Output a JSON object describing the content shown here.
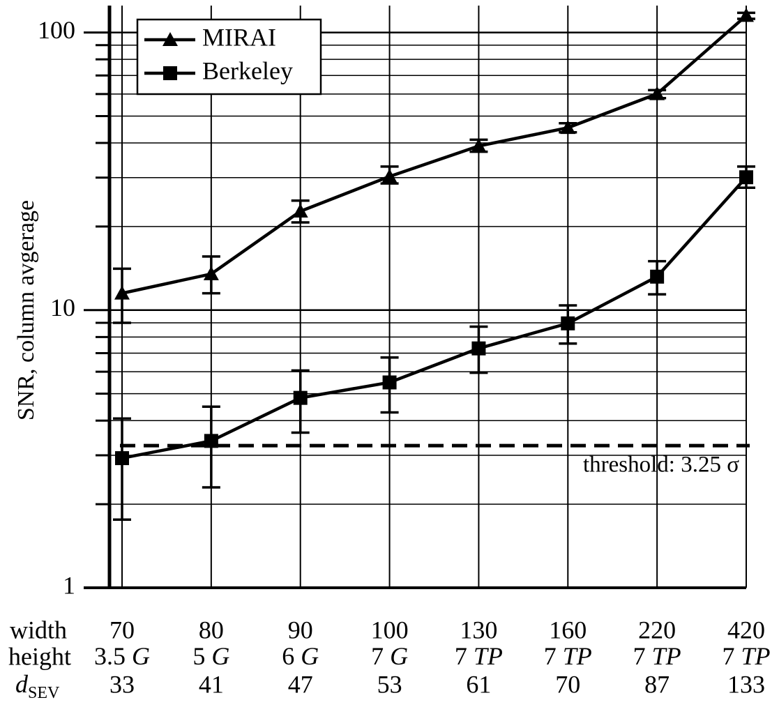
{
  "chart_data": {
    "type": "line",
    "ylabel": "SNR, column avgerage",
    "categories": [
      "70",
      "80",
      "90",
      "100",
      "130",
      "160",
      "220",
      "420"
    ],
    "x_rows": [
      {
        "label": "width"
      },
      {
        "label": "height",
        "values": [
          {
            "n": "3.5",
            "unit": "G"
          },
          {
            "n": "5",
            "unit": "G"
          },
          {
            "n": "6",
            "unit": "G"
          },
          {
            "n": "7",
            "unit": "G"
          },
          {
            "n": "7",
            "unit": "TP"
          },
          {
            "n": "7",
            "unit": "TP"
          },
          {
            "n": "7",
            "unit": "TP"
          },
          {
            "n": "7",
            "unit": "TP"
          }
        ]
      },
      {
        "label": {
          "main": "d",
          "sub": "SEV"
        },
        "values": [
          "33",
          "41",
          "47",
          "53",
          "61",
          "70",
          "87",
          "133"
        ]
      }
    ],
    "series": [
      {
        "name": "MIRAI",
        "color": "#000000",
        "marker": "triangle",
        "values": [
          11.5,
          13.5,
          22.7,
          30.3,
          39.0,
          45.4,
          60.1,
          115
        ],
        "err_low": [
          9.0,
          11.5,
          20.7,
          28.6,
          37.2,
          43.7,
          58.0,
          112
        ],
        "err_high": [
          14.1,
          15.6,
          24.8,
          32.9,
          41.1,
          47.1,
          62.0,
          117.7
        ]
      },
      {
        "name": "Berkeley",
        "color": "#000000",
        "marker": "square",
        "values": [
          2.93,
          3.38,
          4.83,
          5.49,
          7.28,
          8.96,
          13.2,
          30.1
        ],
        "err_low": [
          1.76,
          2.3,
          3.62,
          4.28,
          5.95,
          7.58,
          11.4,
          27.6
        ],
        "err_high": [
          4.07,
          4.49,
          6.06,
          6.75,
          8.72,
          10.4,
          15.0,
          32.9
        ]
      }
    ],
    "threshold": {
      "value": 3.25,
      "label": "threshold: 3.25 σ"
    },
    "log_y": true,
    "ylim": [
      1,
      125
    ],
    "yticks": [
      1,
      10,
      100
    ],
    "yminor": [
      2,
      3,
      4,
      5,
      6,
      7,
      8,
      9,
      20,
      30,
      40,
      50,
      60,
      70,
      80,
      90
    ],
    "grid": true,
    "legend": "upper left"
  }
}
